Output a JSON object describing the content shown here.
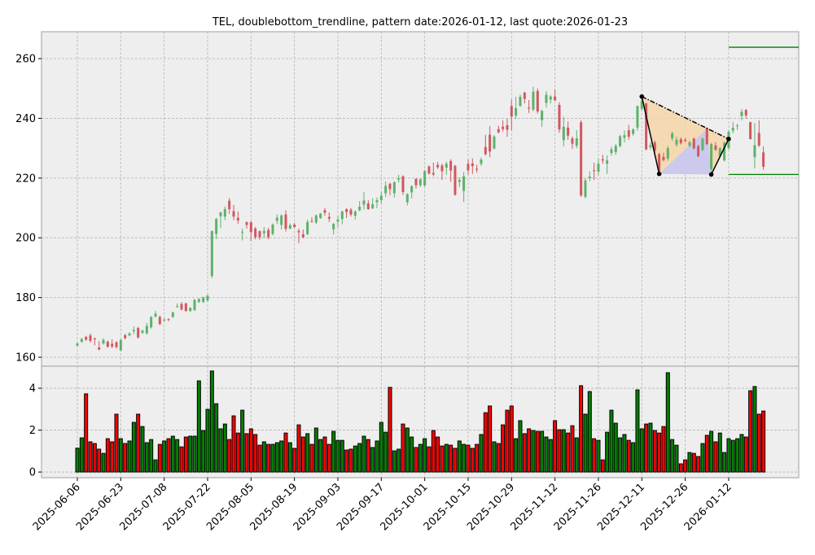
{
  "chart_data": {
    "type": "candlestick",
    "title": "TEL, doublebottom_trendline, pattern date:2026-01-12, last quote:2026-01-23",
    "colors": {
      "up_candle": "#5cb26a",
      "down_candle": "#d1575f",
      "up_volume": "#008000",
      "down_volume": "#ff0000",
      "pattern_fill": "#f5d5a8",
      "pattern_inner_fill": "#c6c6f2",
      "level_line": "#008000",
      "background": "#eeeeee"
    },
    "grid": true,
    "price_axis": {
      "ylim": [
        157,
        269
      ],
      "ticks": [
        160,
        180,
        200,
        220,
        240,
        260
      ]
    },
    "volume_axis": {
      "ylim": [
        -0.27,
        5.05
      ],
      "ticks": [
        0,
        2,
        4
      ]
    },
    "x_tick_labels": [
      "2025-06-06",
      "2025-06-23",
      "2025-07-08",
      "2025-07-22",
      "2025-08-05",
      "2025-08-19",
      "2025-09-03",
      "2025-09-17",
      "2025-10-01",
      "2025-10-15",
      "2025-10-29",
      "2025-11-12",
      "2025-11-26",
      "2025-12-11",
      "2025-12-26",
      "2026-01-12"
    ],
    "ohlc": [
      [
        163.9,
        165,
        163.4,
        164.6
      ],
      [
        165.2,
        166.5,
        164.8,
        166.1
      ],
      [
        166.8,
        167.2,
        165.5,
        165.9
      ],
      [
        167.3,
        168,
        165,
        165.5
      ],
      [
        166.3,
        166.6,
        164,
        166.1
      ],
      [
        163.3,
        165.4,
        162.3,
        162.6
      ],
      [
        164.6,
        166.3,
        164.2,
        165.8
      ],
      [
        165.2,
        165.6,
        163.2,
        163.5
      ],
      [
        164.5,
        166,
        163,
        163.6
      ],
      [
        165,
        165.4,
        162.9,
        163.4
      ],
      [
        162.3,
        166,
        162,
        165.8
      ],
      [
        167.4,
        167.8,
        166,
        166.4
      ],
      [
        167.3,
        168.3,
        167,
        168
      ],
      [
        168.7,
        170.3,
        167.7,
        169.1
      ],
      [
        169.8,
        170.2,
        166.3,
        166.6
      ],
      [
        168.2,
        169.2,
        167.8,
        168.9
      ],
      [
        168,
        171.5,
        167.6,
        170.5
      ],
      [
        170,
        173.8,
        169.6,
        173.5
      ],
      [
        173.6,
        175.5,
        173.3,
        174.6
      ],
      [
        173.5,
        174,
        170.8,
        171.1
      ],
      [
        172.3,
        173,
        172,
        172.6
      ],
      [
        172.8,
        173,
        172,
        172.6
      ],
      [
        173.5,
        175.3,
        173.2,
        175
      ],
      [
        176.9,
        178,
        176.6,
        177.1
      ],
      [
        177.8,
        178.5,
        175.7,
        176
      ],
      [
        178,
        178.3,
        175.2,
        175.5
      ],
      [
        175.5,
        176.8,
        175.2,
        176.5
      ],
      [
        175.8,
        179.5,
        175.5,
        179.2
      ],
      [
        178.5,
        179.8,
        178.2,
        179.5
      ],
      [
        178.5,
        180.3,
        178.2,
        180
      ],
      [
        179,
        181,
        178.6,
        180.6
      ],
      [
        187.2,
        202.3,
        186.5,
        202.3
      ],
      [
        201.3,
        206.7,
        199.6,
        206.3
      ],
      [
        207.2,
        208.7,
        203.3,
        208.5
      ],
      [
        207.1,
        210.5,
        205.9,
        209.6
      ],
      [
        212.4,
        213.3,
        208,
        209.6
      ],
      [
        208.9,
        211,
        205.9,
        207.1
      ],
      [
        206.7,
        208.8,
        204.7,
        205.8
      ],
      [
        201.8,
        203.1,
        199.1,
        202
      ],
      [
        205.2,
        205.5,
        203.1,
        204.3
      ],
      [
        205.2,
        205.5,
        199,
        201.9
      ],
      [
        203.1,
        203.6,
        199.5,
        200.2
      ],
      [
        202.2,
        202.5,
        199.3,
        200.2
      ],
      [
        201.5,
        203.6,
        199.8,
        202.3
      ],
      [
        202.6,
        203.3,
        199.5,
        200.2
      ],
      [
        201.3,
        204.8,
        200.8,
        204.4
      ],
      [
        205.7,
        207.8,
        204.6,
        206.7
      ],
      [
        204.3,
        207.8,
        202.8,
        207.5
      ],
      [
        207.8,
        209.2,
        202.1,
        203
      ],
      [
        203.1,
        204.8,
        202.8,
        204.2
      ],
      [
        204.4,
        205,
        203.3,
        203.6
      ],
      [
        202.3,
        203.1,
        198.2,
        201.8
      ],
      [
        201.2,
        202.8,
        200,
        200.1
      ],
      [
        201.2,
        206.1,
        200.9,
        205.3
      ],
      [
        205.6,
        206.9,
        205.1,
        205.3
      ],
      [
        205.1,
        207.8,
        204.6,
        207.5
      ],
      [
        206.6,
        208.3,
        206.3,
        208.1
      ],
      [
        209.2,
        210,
        207.4,
        208.4
      ],
      [
        207,
        208.5,
        205.3,
        206.4
      ],
      [
        202.8,
        204.9,
        201.1,
        204.7
      ],
      [
        205.4,
        207.4,
        203.6,
        206.1
      ],
      [
        206.3,
        209.1,
        204.6,
        208.8
      ],
      [
        209.6,
        209.9,
        206.6,
        208.6
      ],
      [
        209.4,
        210,
        207.1,
        207.8
      ],
      [
        207.4,
        209.2,
        206.1,
        208.8
      ],
      [
        209.2,
        212.3,
        208.9,
        210.4
      ],
      [
        211.1,
        215.3,
        209.5,
        212.5
      ],
      [
        211.5,
        212.6,
        209.4,
        209.6
      ],
      [
        209.9,
        213.2,
        209.6,
        211.2
      ],
      [
        211.9,
        213.5,
        209.9,
        212.6
      ],
      [
        212.6,
        215.3,
        211.5,
        214.1
      ],
      [
        214.9,
        218.9,
        213.7,
        217.4
      ],
      [
        218.1,
        218.4,
        214.3,
        216.3
      ],
      [
        214.9,
        218.9,
        213.5,
        218.6
      ],
      [
        219.5,
        221.1,
        218.5,
        219.9
      ],
      [
        220.6,
        220.9,
        214.4,
        215.3
      ],
      [
        211.9,
        214.9,
        210.8,
        214.6
      ],
      [
        215.2,
        217.6,
        213.2,
        217.3
      ],
      [
        219.7,
        220,
        216.5,
        217.6
      ],
      [
        217.6,
        219.9,
        217,
        219.6
      ],
      [
        217.5,
        222.8,
        217.2,
        222.3
      ],
      [
        223.9,
        224.2,
        221.2,
        221.5
      ],
      [
        221.7,
        225.2,
        220.6,
        221.2
      ],
      [
        224.4,
        225.4,
        223,
        223.6
      ],
      [
        224.2,
        224.8,
        219.4,
        222.3
      ],
      [
        223.5,
        225.5,
        221.1,
        224.8
      ],
      [
        225.7,
        226.3,
        218.7,
        222.5
      ],
      [
        224.1,
        224.4,
        214.1,
        214.4
      ],
      [
        218.7,
        220.2,
        217,
        219.4
      ],
      [
        215.7,
        222,
        212,
        220.6
      ],
      [
        224.8,
        226.2,
        221.1,
        222.6
      ],
      [
        224.9,
        226.6,
        221.4,
        224
      ],
      [
        223.1,
        224.5,
        221.8,
        222.9
      ],
      [
        224.8,
        226.9,
        224.1,
        226.2
      ],
      [
        230.4,
        234.5,
        227.5,
        228
      ],
      [
        234.5,
        237.4,
        227,
        228.9
      ],
      [
        229.9,
        234.4,
        229.6,
        233.9
      ],
      [
        236.4,
        237.5,
        235,
        235.3
      ],
      [
        237.2,
        239.3,
        235.6,
        236.4
      ],
      [
        237.7,
        239.8,
        233.8,
        236.2
      ],
      [
        244.1,
        246.3,
        236,
        240.6
      ],
      [
        240.9,
        247.2,
        239.8,
        243.4
      ],
      [
        244.2,
        248,
        243.8,
        247.2
      ],
      [
        248.6,
        248.9,
        245,
        246.5
      ],
      [
        243.6,
        246.1,
        241.8,
        243.4
      ],
      [
        242.9,
        250.6,
        242.4,
        248.9
      ],
      [
        249.2,
        250,
        241.6,
        242.3
      ],
      [
        239.4,
        242.9,
        237.1,
        242.5
      ],
      [
        245.2,
        249.1,
        243.6,
        247.9
      ],
      [
        246.3,
        247.7,
        245,
        247.3
      ],
      [
        247.3,
        249.6,
        246,
        246
      ],
      [
        244.5,
        245.4,
        235.2,
        236.3
      ],
      [
        232.7,
        240.5,
        230.6,
        237.2
      ],
      [
        236.9,
        238.9,
        232.8,
        234.2
      ],
      [
        233.3,
        233.9,
        229.8,
        231.5
      ],
      [
        230.8,
        236,
        230,
        233.3
      ],
      [
        238.7,
        239.4,
        213.7,
        214.2
      ],
      [
        213.7,
        220,
        213.2,
        219.2
      ],
      [
        220,
        222.3,
        218.9,
        220.5
      ],
      [
        222.6,
        225.1,
        219.4,
        222.3
      ],
      [
        222.1,
        226.6,
        220.9,
        224.8
      ],
      [
        226.3,
        227.8,
        224.8,
        225.9
      ],
      [
        224.8,
        227.6,
        221.4,
        225.9
      ],
      [
        228.4,
        230.5,
        227.5,
        229.6
      ],
      [
        228.7,
        231.4,
        227.8,
        230.8
      ],
      [
        230.7,
        234.5,
        230.3,
        234
      ],
      [
        233.5,
        236,
        231.9,
        234.4
      ],
      [
        236,
        237.8,
        232.8,
        233.9
      ],
      [
        234.8,
        236.7,
        234.2,
        236.3
      ],
      [
        236.9,
        244.3,
        235.8,
        244.1
      ],
      [
        243.2,
        247.3,
        242.5,
        245.9
      ],
      [
        245,
        245.2,
        229.3,
        229.6
      ],
      [
        230.3,
        232,
        229.5,
        231
      ],
      [
        231.9,
        232.5,
        228.5,
        229.2
      ],
      [
        228,
        228.5,
        221.4,
        222.3
      ],
      [
        227.1,
        228.5,
        225.6,
        226
      ],
      [
        226.5,
        230.8,
        225.8,
        230
      ],
      [
        233.3,
        235.5,
        232.5,
        235
      ],
      [
        231.2,
        233.8,
        230.5,
        232.8
      ],
      [
        233,
        233.6,
        231.2,
        231.7
      ],
      [
        232.8,
        233.4,
        232.1,
        232.4
      ],
      [
        230.8,
        232.5,
        230.4,
        232
      ],
      [
        233.2,
        233.6,
        229.5,
        230
      ],
      [
        230.7,
        231.2,
        227,
        227.3
      ],
      [
        229.4,
        233.6,
        229,
        233.2
      ],
      [
        236.8,
        237,
        231,
        231.4
      ],
      [
        223,
        231.8,
        221.2,
        231.4
      ],
      [
        230.9,
        232,
        229.1,
        229.5
      ],
      [
        227.3,
        230.4,
        226.8,
        230
      ],
      [
        225.9,
        232.2,
        225.5,
        231.8
      ],
      [
        230,
        236,
        229.5,
        235.5
      ],
      [
        235.9,
        238.8,
        235,
        236.8
      ],
      [
        237.4,
        238.2,
        236.1,
        237.6
      ],
      [
        240.8,
        243.1,
        239.3,
        242.2
      ],
      [
        242.8,
        243.1,
        239.9,
        241
      ],
      [
        238.7,
        238.9,
        233,
        233
      ],
      [
        227,
        238.5,
        223.2,
        231
      ],
      [
        235.1,
        239.3,
        230.4,
        230.9
      ],
      [
        228.6,
        230.6,
        222.8,
        223.8
      ]
    ],
    "volume": [
      1.14,
      1.63,
      3.73,
      1.44,
      1.36,
      1.09,
      0.89,
      1.59,
      1.44,
      2.76,
      1.59,
      1.36,
      1.48,
      2.37,
      2.76,
      2.17,
      1.4,
      1.55,
      0.58,
      1.32,
      1.48,
      1.59,
      1.71,
      1.55,
      1.2,
      1.67,
      1.71,
      1.71,
      4.35,
      1.98,
      2.99,
      4.82,
      3.26,
      2.06,
      2.29,
      1.55,
      2.68,
      1.86,
      2.95,
      1.83,
      2.06,
      1.79,
      1.28,
      1.44,
      1.32,
      1.32,
      1.4,
      1.48,
      1.86,
      1.4,
      1.13,
      2.25,
      1.67,
      1.83,
      1.32,
      2.1,
      1.55,
      1.67,
      1.32,
      1.94,
      1.51,
      1.51,
      1.05,
      1.09,
      1.24,
      1.36,
      1.71,
      1.55,
      1.17,
      1.48,
      2.37,
      1.9,
      4.04,
      1.01,
      1.09,
      2.29,
      2.1,
      1.67,
      1.17,
      1.32,
      1.59,
      1.2,
      1.98,
      1.67,
      1.24,
      1.32,
      1.28,
      1.13,
      1.48,
      1.32,
      1.28,
      1.13,
      1.32,
      1.79,
      2.83,
      3.15,
      1.44,
      1.36,
      2.25,
      2.95,
      3.15,
      1.59,
      2.45,
      1.83,
      2.06,
      1.98,
      1.94,
      1.94,
      1.67,
      1.55,
      2.45,
      2.02,
      2.02,
      1.86,
      2.21,
      1.63,
      4.12,
      2.76,
      3.84,
      1.59,
      1.51,
      0.58,
      1.9,
      2.95,
      2.33,
      1.63,
      1.79,
      1.51,
      1.4,
      3.92,
      2.06,
      2.29,
      2.33,
      1.98,
      1.86,
      2.17,
      4.74,
      1.55,
      1.28,
      0.39,
      0.58,
      0.93,
      0.89,
      0.74,
      1.36,
      1.75,
      1.94,
      1.44,
      1.86,
      0.93,
      1.59,
      1.51,
      1.59,
      1.79,
      1.67,
      3.88,
      4.08,
      2.76,
      2.91
    ],
    "pattern": {
      "points": [
        {
          "bar": 130,
          "price": 247.3
        },
        {
          "bar": 134,
          "price": 221.4
        },
        {
          "bar": 146,
          "price": 221.2
        },
        {
          "bar": 150,
          "price": 233.1
        }
      ],
      "inner_apex": {
        "bar": 145,
        "price": 236.5
      }
    },
    "levels": [
      263.8,
      221.2
    ]
  }
}
